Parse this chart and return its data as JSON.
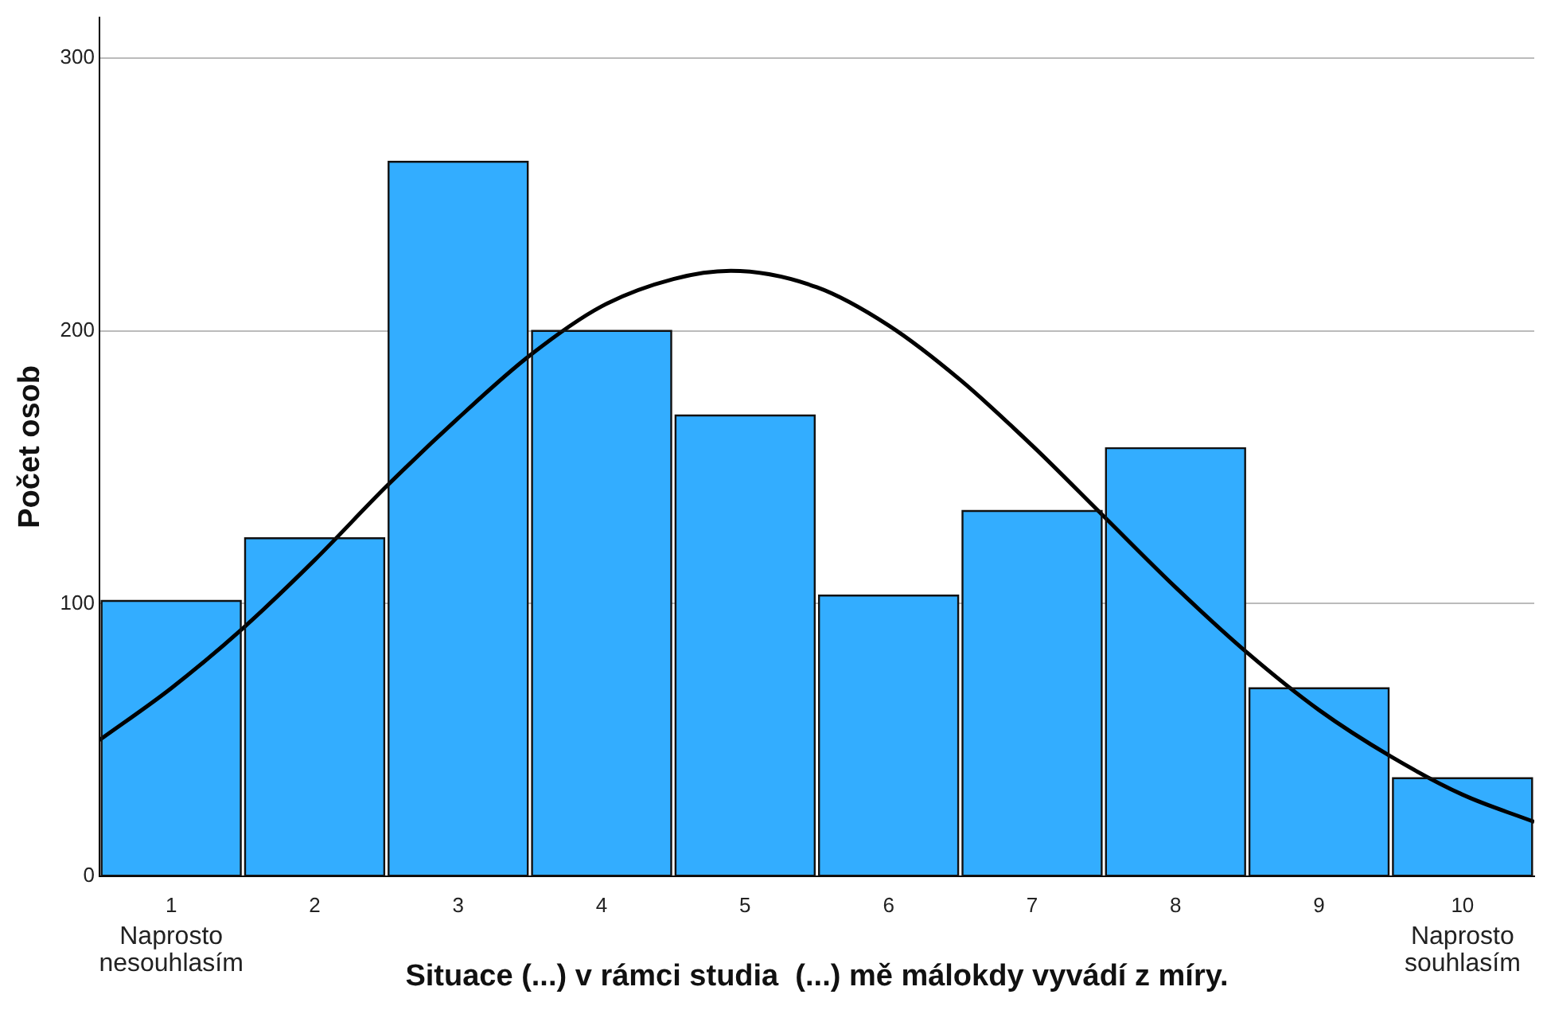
{
  "chart_data": {
    "type": "histogram",
    "ylabel": "Počet osob",
    "xlabel": "Situace (...) v rámci studia  (...) mě málokdy vyvádí z míry.",
    "bins": [
      0.5,
      1.5,
      2.5,
      3.5,
      4.5,
      5.5,
      6.5,
      7.5,
      8.5,
      9.5,
      10.5
    ],
    "values": [
      101,
      124,
      262,
      200,
      169,
      103,
      134,
      157,
      69,
      36
    ],
    "color": "#33adff",
    "series": [
      {
        "type": "line",
        "color": "#000000",
        "x": [
          0.5,
          1,
          1.5,
          2,
          2.5,
          3,
          3.5,
          4,
          4.5,
          4.9,
          5.5,
          6,
          6.5,
          7,
          7.5,
          8,
          8.5,
          9,
          9.5,
          10,
          10.5
        ],
        "values": [
          50,
          69,
          91,
          116,
          143,
          168,
          191,
          209,
          219,
          222,
          216,
          202,
          182,
          158,
          132,
          106,
          82,
          61,
          44,
          30,
          20
        ]
      }
    ],
    "xlim": [
      0.5,
      10.5
    ],
    "xticks": [
      1,
      2,
      3,
      4,
      5,
      6,
      7,
      8,
      9,
      10
    ],
    "ylim": [
      0,
      315
    ],
    "yticks": [
      0,
      100,
      200,
      300
    ],
    "grid": "y",
    "legend": false,
    "annotations": [
      "Naprosto\nnesouhlasím",
      "Naprosto\nsouhlasím"
    ]
  }
}
